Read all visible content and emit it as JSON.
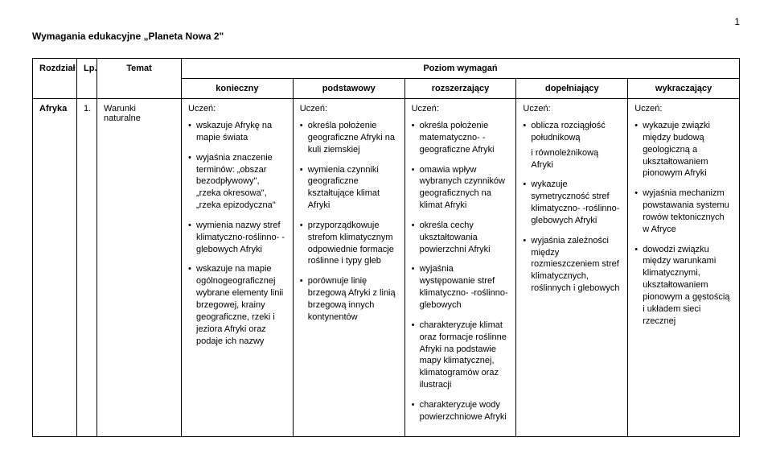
{
  "page_number": "1",
  "doc_title": "Wymagania edukacyjne „Planeta Nowa 2\"",
  "headers": {
    "rozdzial": "Rozdział",
    "lp": "Lp.",
    "temat": "Temat",
    "poziom": "Poziom wymagań",
    "levels": [
      "konieczny",
      "podstawowy",
      "rozszerzający",
      "dopełniający",
      "wykraczający"
    ]
  },
  "row": {
    "rozdzial": "Afryka",
    "lp": "1.",
    "temat": "Warunki naturalne",
    "uczen": "Uczeń:",
    "konieczny": [
      "wskazuje Afrykę na mapie świata",
      "wyjaśnia znaczenie terminów: „obszar bezodpływowy\", „rzeka okresowa\", „rzeka epizodyczna\"",
      "wymienia nazwy stref klimatyczno-roślinno- -glebowych Afryki",
      "wskazuje na mapie ogólnogeograficznej wybrane elementy linii brzegowej, krainy geograficzne, rzeki i jeziora Afryki oraz podaje ich nazwy"
    ],
    "podstawowy": [
      "określa położenie geograficzne Afryki na kuli ziemskiej",
      "wymienia czynniki geograficzne kształtujące klimat Afryki",
      "przyporządkowuje strefom klimatycznym odpowiednie formacje roślinne i typy gleb",
      "porównuje linię brzegową Afryki z linią brzegową innych kontynentów"
    ],
    "rozszerzajacy": [
      "określa położenie matematyczno- -geograficzne Afryki",
      "omawia wpływ wybranych czynników geograficznych na klimat Afryki",
      "określa cechy ukształtowania powierzchni Afryki",
      "wyjaśnia występowanie stref klimatyczno- -roślinno-glebowych",
      "charakteryzuje klimat oraz formacje roślinne Afryki na podstawie mapy klimatycznej, klimatogramów oraz ilustracji",
      "charakteryzuje wody powierzchniowe Afryki"
    ],
    "dopelniajacy": [
      "oblicza rozciągłość południkową",
      "i równoleżnikową Afryki",
      "wykazuje symetryczność stref klimatyczno- -roślinno-glebowych Afryki",
      "wyjaśnia zależności między rozmieszczeniem stref klimatycznych, roślinnych i glebowych"
    ],
    "wykraczajacy": [
      "wykazuje związki między budową geologiczną a ukształtowaniem pionowym Afryki",
      "wyjaśnia mechanizm powstawania systemu rowów tektonicznych w Afryce",
      "dowodzi związku między warunkami klimatycznymi, ukształtowaniem pionowym a gęstością i układem sieci rzecznej"
    ]
  }
}
